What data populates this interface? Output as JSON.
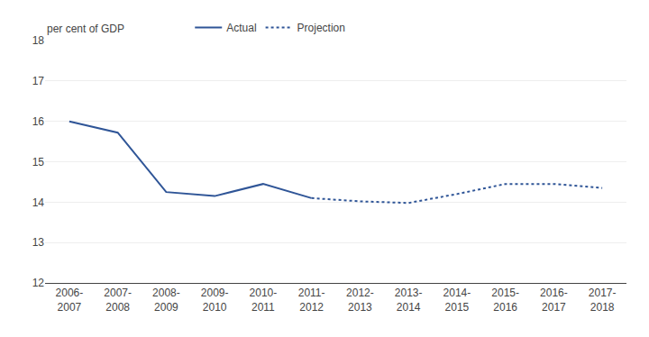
{
  "chart_data": {
    "type": "line",
    "ylabel": "per cent of GDP",
    "categories": [
      "2006-\n2007",
      "2007-\n2008",
      "2008-\n2009",
      "2009-\n2010",
      "2010-\n2011",
      "2011-\n2012",
      "2012-\n2013",
      "2013-\n2014",
      "2014-\n2015",
      "2015-\n2016",
      "2016-\n2017",
      "2017-\n2018"
    ],
    "series": [
      {
        "name": "Actual",
        "color": "#2F5597",
        "line_style": "solid",
        "values": [
          16.0,
          15.72,
          14.25,
          14.15,
          14.45,
          14.1,
          null,
          null,
          null,
          null,
          null,
          null
        ]
      },
      {
        "name": "Projection",
        "color": "#2F5597",
        "line_style": "dotted",
        "values": [
          null,
          null,
          null,
          null,
          null,
          14.1,
          14.02,
          13.98,
          14.2,
          14.45,
          14.45,
          14.35
        ]
      }
    ],
    "ylim": [
      12,
      18
    ],
    "yticks": [
      12,
      13,
      14,
      15,
      16,
      17,
      18
    ],
    "grid": true,
    "legend": "upper left"
  }
}
